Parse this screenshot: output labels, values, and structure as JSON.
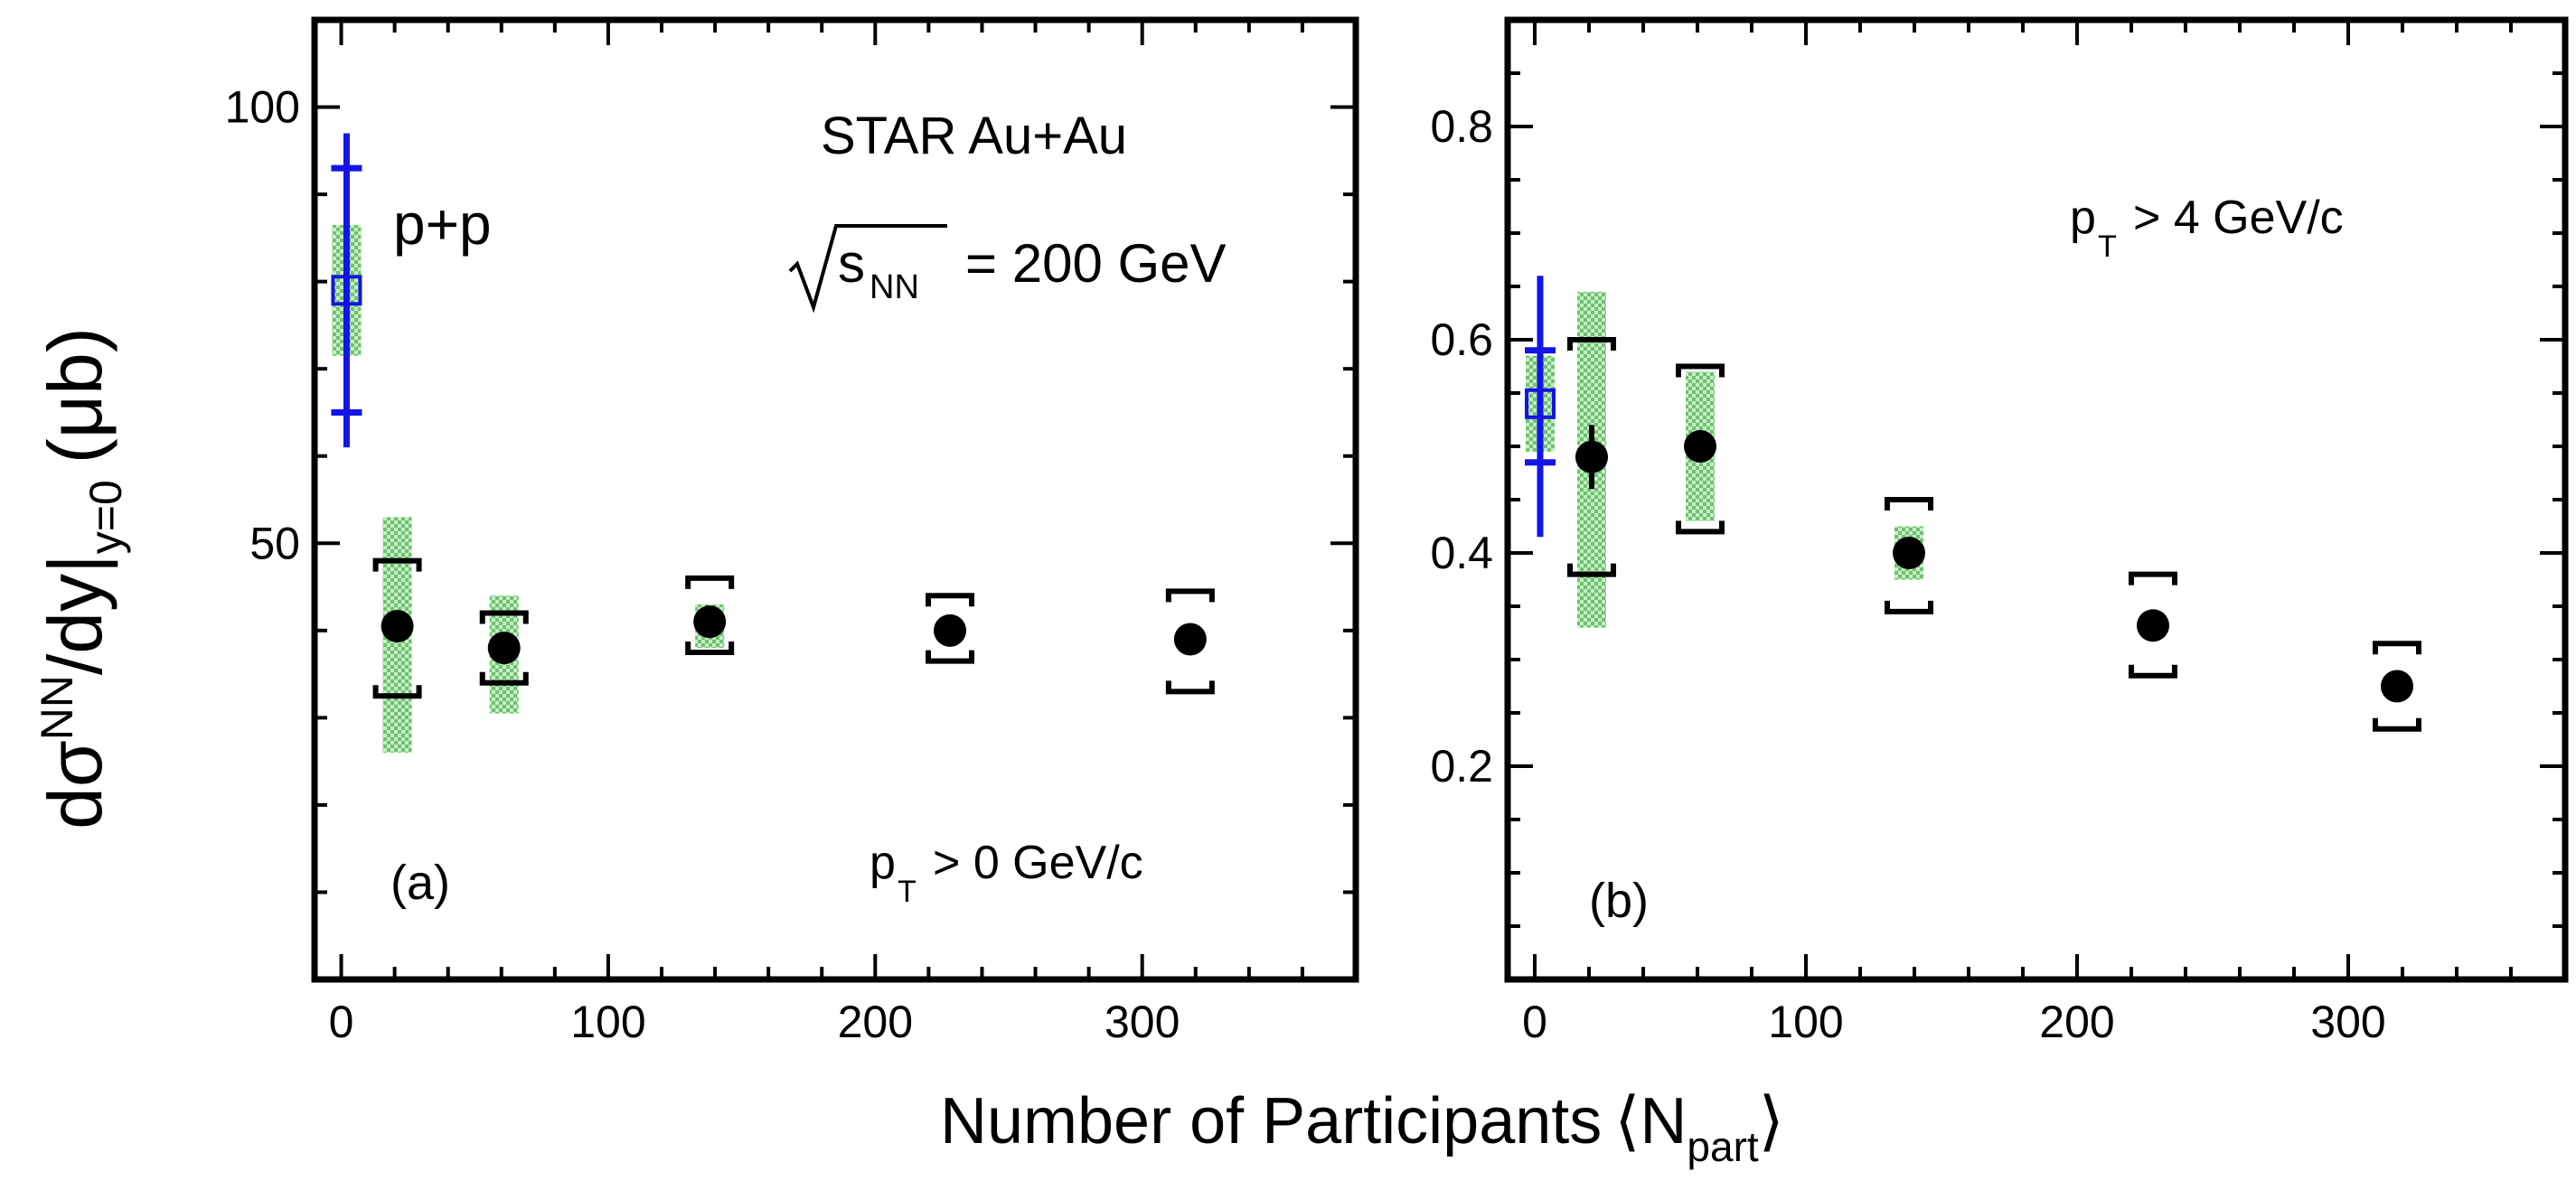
{
  "chart_data": [
    {
      "type": "scatter",
      "panel_label": "(a)",
      "xlim": [
        -10,
        380
      ],
      "ylim": [
        0,
        110
      ],
      "y_ticks": [
        50,
        100
      ],
      "y_tick_labels": [
        "50",
        "100"
      ],
      "x_ticks": [
        0,
        100,
        200,
        300
      ],
      "x_tick_labels": [
        "0",
        "100",
        "200",
        "300"
      ],
      "annotations": {
        "experiment": "STAR Au+Au",
        "energy_sqrt": "s",
        "energy_sub": "NN",
        "energy_value": "= 200 GeV",
        "pp_label": "p+p",
        "cut_main": "p",
        "cut_sub": "T",
        "cut_rest": "> 0 GeV/c"
      },
      "series": [
        {
          "name": "Au+Au",
          "points": [
            {
              "x": 21,
              "y": 40.5,
              "sys_low": 32.5,
              "sys_high": 48,
              "green_low": 26,
              "green_high": 53
            },
            {
              "x": 61,
              "y": 38,
              "sys_low": 34,
              "sys_high": 42,
              "green_low": 30.5,
              "green_high": 44
            },
            {
              "x": 138,
              "y": 41,
              "sys_low": 37.5,
              "sys_high": 46,
              "green_low": 38,
              "green_high": 43
            },
            {
              "x": 228,
              "y": 40,
              "sys_low": 36.5,
              "sys_high": 44
            },
            {
              "x": 318,
              "y": 39,
              "sys_low": 33,
              "sys_high": 44.5
            }
          ]
        },
        {
          "name": "p+p",
          "points": [
            {
              "x": 2,
              "y": 79,
              "stat_low": 61,
              "stat_high": 97,
              "sys_low": 65,
              "sys_high": 93,
              "green_low": 71.5,
              "green_high": 86.5
            }
          ]
        }
      ]
    },
    {
      "type": "scatter",
      "panel_label": "(b)",
      "xlim": [
        -10,
        380
      ],
      "ylim": [
        0,
        0.9
      ],
      "y_ticks": [
        0.2,
        0.4,
        0.6,
        0.8
      ],
      "y_tick_labels": [
        "0.2",
        "0.4",
        "0.6",
        "0.8"
      ],
      "x_ticks": [
        0,
        100,
        200,
        300
      ],
      "x_tick_labels": [
        "0",
        "100",
        "200",
        "300"
      ],
      "annotations": {
        "cut_main": "p",
        "cut_sub": "T",
        "cut_rest": "> 4 GeV/c"
      },
      "series": [
        {
          "name": "Au+Au",
          "points": [
            {
              "x": 21,
              "y": 0.49,
              "stat_low": 0.46,
              "stat_high": 0.52,
              "sys_low": 0.38,
              "sys_high": 0.6,
              "green_low": 0.33,
              "green_high": 0.645
            },
            {
              "x": 61,
              "y": 0.5,
              "sys_low": 0.42,
              "sys_high": 0.575,
              "green_low": 0.43,
              "green_high": 0.57
            },
            {
              "x": 138,
              "y": 0.4,
              "sys_low": 0.345,
              "sys_high": 0.45,
              "green_low": 0.375,
              "green_high": 0.425
            },
            {
              "x": 228,
              "y": 0.332,
              "sys_low": 0.285,
              "sys_high": 0.38
            },
            {
              "x": 318,
              "y": 0.275,
              "sys_low": 0.235,
              "sys_high": 0.315
            }
          ]
        },
        {
          "name": "p+p",
          "points": [
            {
              "x": 2,
              "y": 0.54,
              "stat_low": 0.415,
              "stat_high": 0.66,
              "sys_low": 0.485,
              "sys_high": 0.59,
              "green_low": 0.495,
              "green_high": 0.585
            }
          ]
        }
      ]
    }
  ],
  "axes": {
    "ylabel_main": "dσ",
    "ylabel_sup": "NN",
    "ylabel_mid": "/dy|",
    "ylabel_sub": "y=0",
    "ylabel_unit": "(μb)",
    "xlabel_main": "Number of Participants",
    "xlabel_open": "⟨N",
    "xlabel_sub": "part",
    "xlabel_close": "⟩"
  },
  "colors": {
    "pp": "#1414e6",
    "band": "#7fd07f",
    "points": "#000000"
  }
}
